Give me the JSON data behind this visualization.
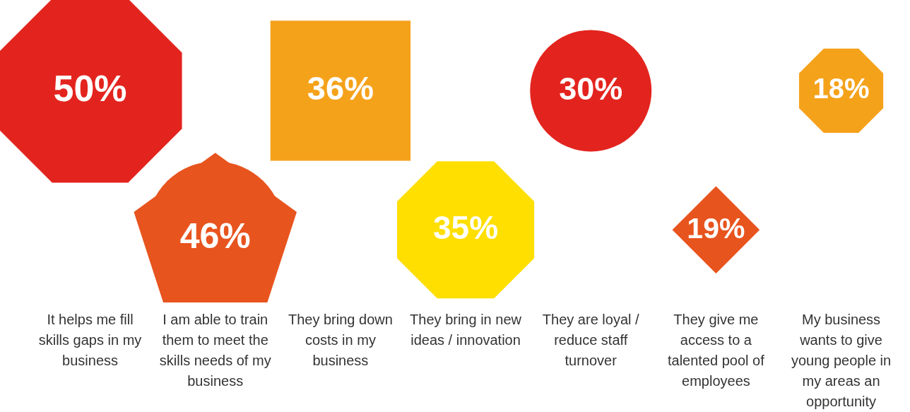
{
  "chart_data": {
    "type": "other",
    "categories": [
      "It helps me fill skills gaps in my business",
      "I am able to train them to meet the skills needs of my business",
      "They bring down costs in my business",
      "They bring in new ideas / innovation",
      "They are loyal / reduce staff turnover",
      "They give me access to a talented pool of employees",
      "My business wants to give young people in my areas an opportunity"
    ],
    "values": [
      50,
      46,
      36,
      35,
      30,
      19,
      18
    ],
    "value_labels": [
      "50%",
      "46%",
      "36%",
      "35%",
      "30%",
      "19%",
      "18%"
    ],
    "colors": [
      "#e3241e",
      "#e8541e",
      "#f5a21b",
      "#fedf00",
      "#e3241e",
      "#e8541e",
      "#f5a21b"
    ]
  }
}
